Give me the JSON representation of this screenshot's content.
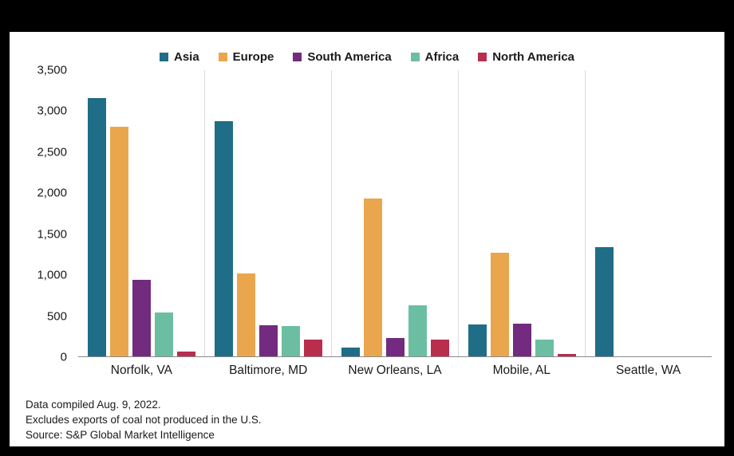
{
  "chart_data": {
    "type": "bar",
    "title": "",
    "categories": [
      "Norfolk, VA",
      "Baltimore, MD",
      "New Orleans, LA",
      "Mobile, AL",
      "Seattle, WA"
    ],
    "series": [
      {
        "name": "Asia",
        "color": "#1F6D87",
        "values": [
          3160,
          2880,
          110,
          390,
          1340
        ]
      },
      {
        "name": "Europe",
        "color": "#EAA64D",
        "values": [
          2810,
          1010,
          1930,
          1265,
          0
        ]
      },
      {
        "name": "South America",
        "color": "#722B7E",
        "values": [
          940,
          380,
          225,
          400,
          0
        ]
      },
      {
        "name": "Africa",
        "color": "#6CBEA2",
        "values": [
          535,
          375,
          620,
          205,
          0
        ]
      },
      {
        "name": "North America",
        "color": "#B92D4D",
        "values": [
          60,
          205,
          205,
          30,
          0
        ]
      }
    ],
    "ylim": [
      0,
      3500
    ],
    "ytick_labels": [
      "0",
      "500",
      "1,000",
      "1,500",
      "2,000",
      "2,500",
      "3,000",
      "3,500"
    ],
    "grid": "vertical separators between category groups",
    "legend_position": "top",
    "xlabel": "",
    "ylabel": ""
  },
  "footnotes": [
    "Data compiled Aug. 9, 2022.",
    "Excludes exports of coal not produced in the U.S.",
    "Source: S&P Global Market Intelligence"
  ]
}
